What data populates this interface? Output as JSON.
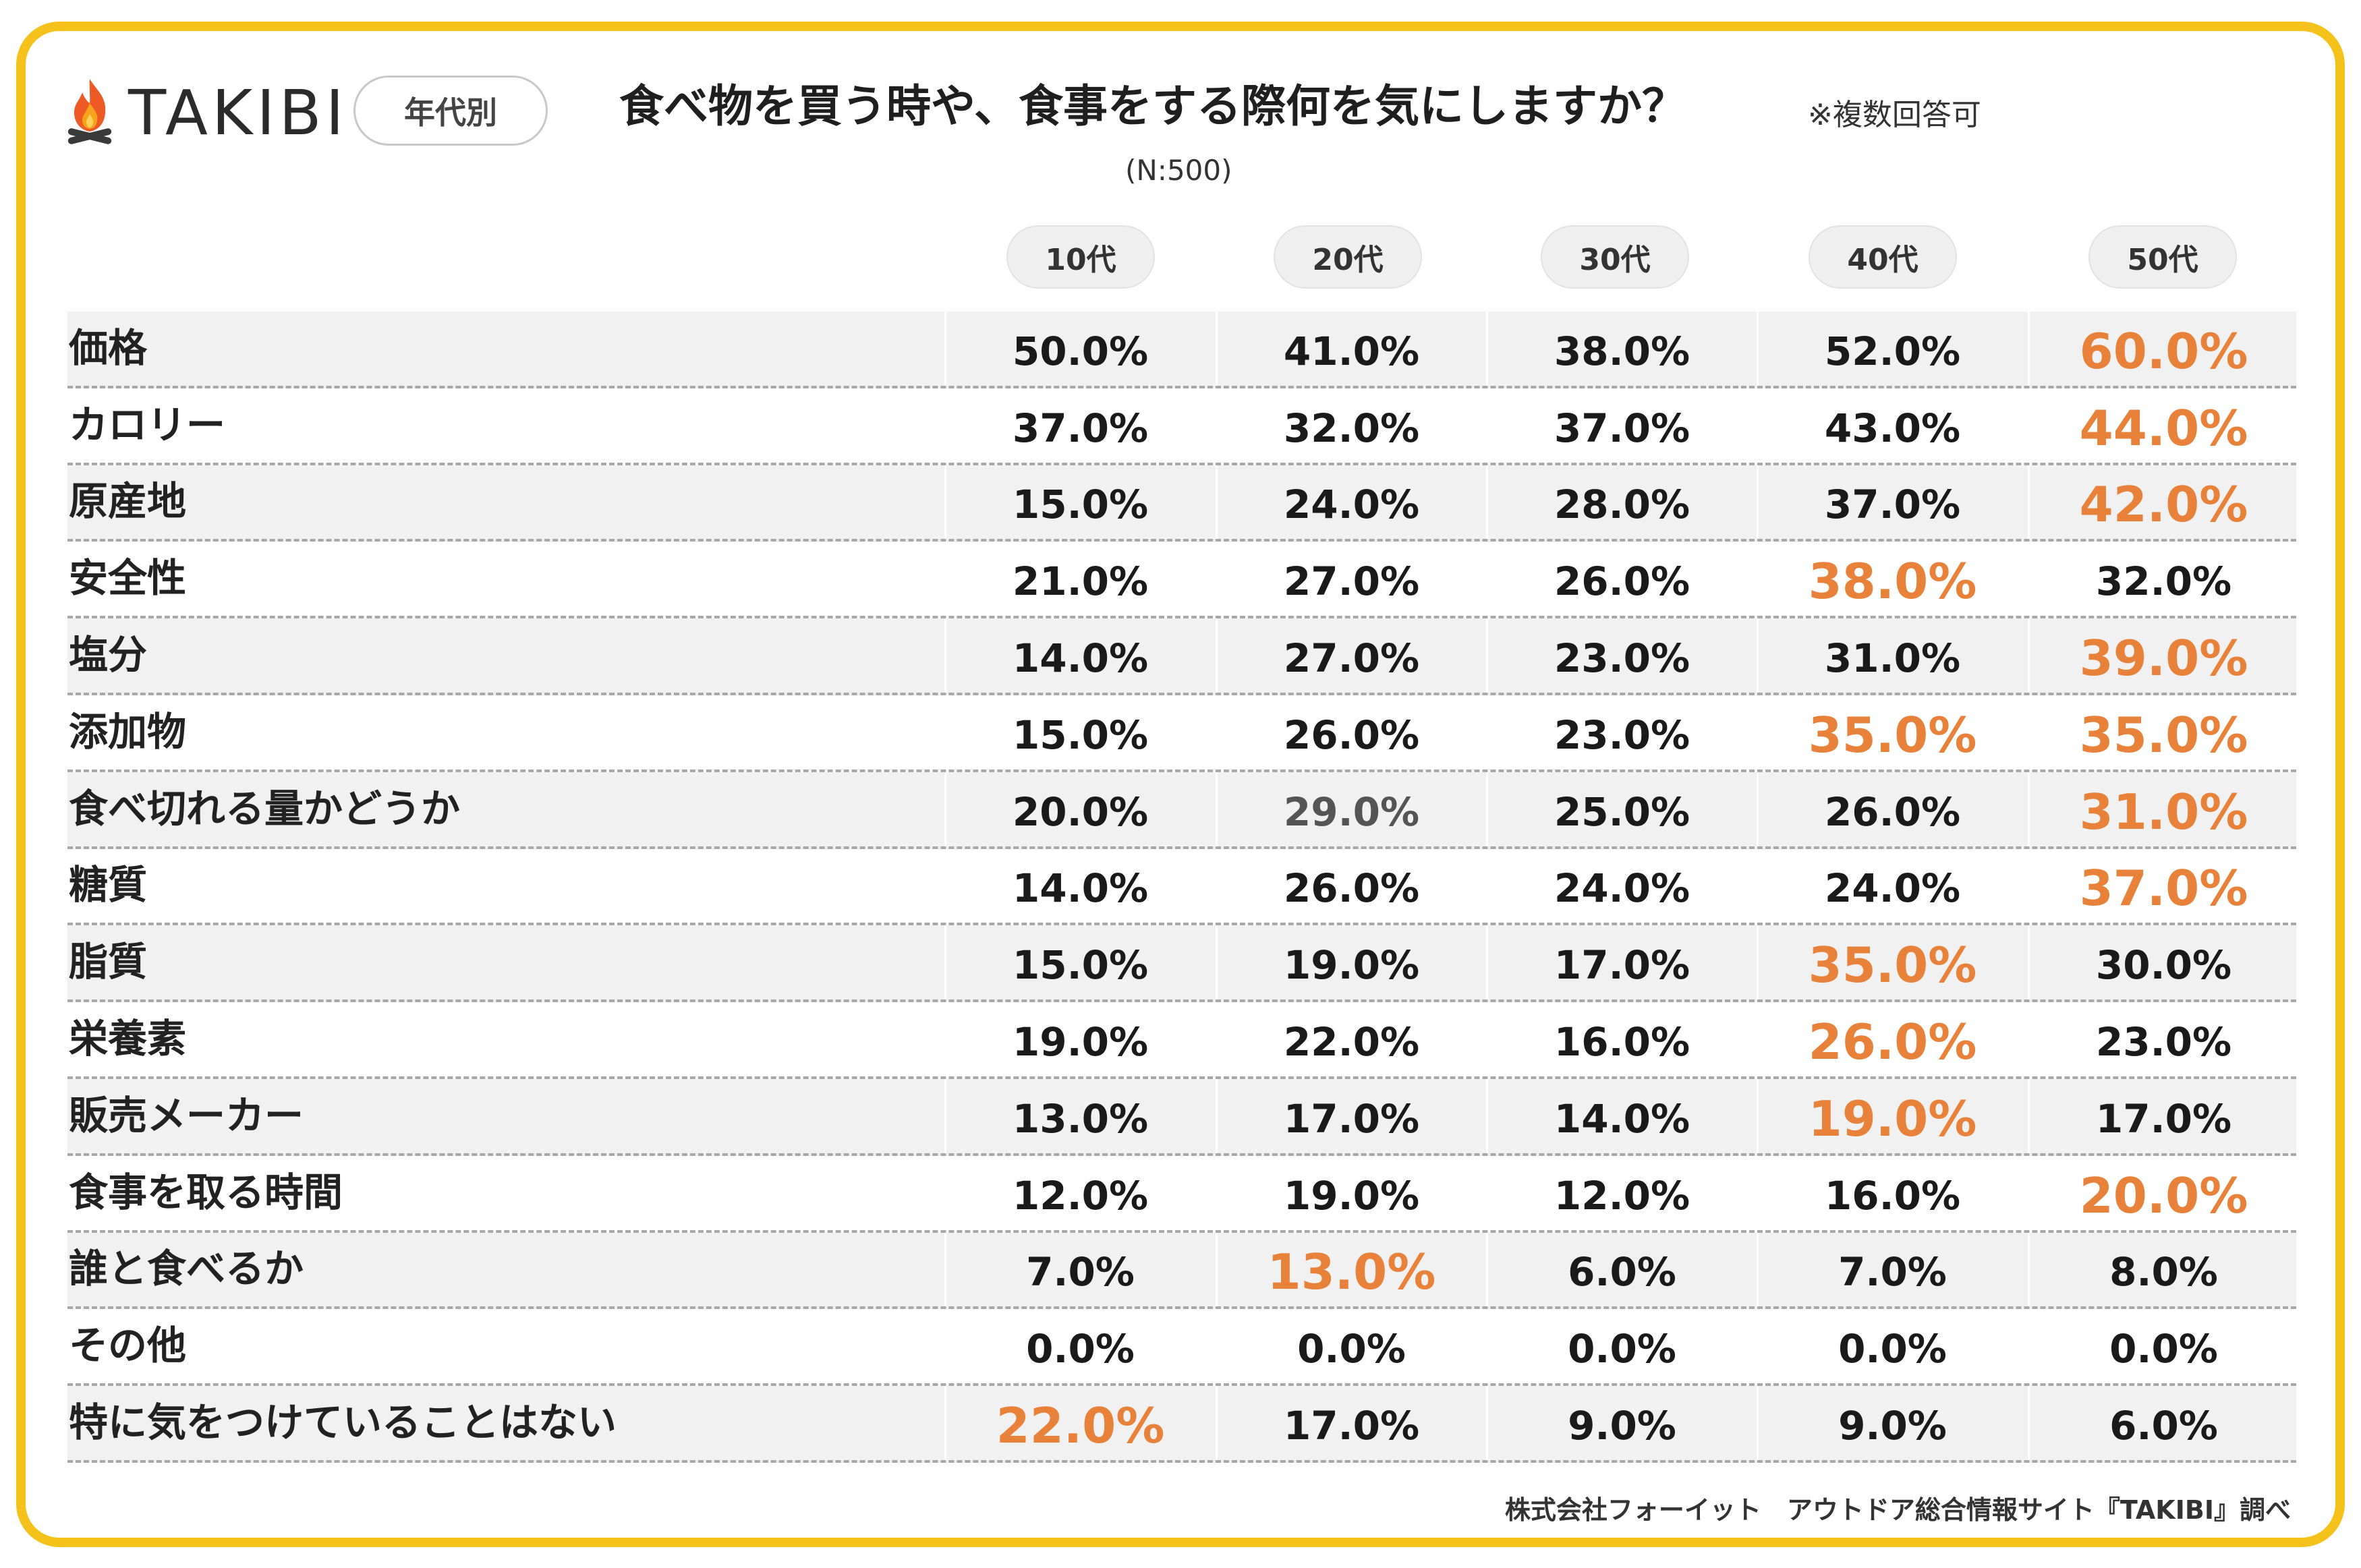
{
  "header": {
    "logo_text": "TAKIBI",
    "logo_icon": "campfire-icon",
    "category_label": "年代別",
    "title": "食べ物を買う時や、食事をする際何を気にしますか？",
    "note": "※複数回答可",
    "sample_size": "(N:500)"
  },
  "colors": {
    "border": "#f5c21b",
    "highlight": "#e8823a",
    "row_shade": "#f1f1f1"
  },
  "chart_data": {
    "type": "table",
    "columns": [
      "10代",
      "20代",
      "30代",
      "40代",
      "50代"
    ],
    "rows": [
      {
        "label": "価格",
        "values": [
          "50.0%",
          "41.0%",
          "38.0%",
          "52.0%",
          "60.0%"
        ],
        "highlight": [
          4
        ]
      },
      {
        "label": "カロリー",
        "values": [
          "37.0%",
          "32.0%",
          "37.0%",
          "43.0%",
          "44.0%"
        ],
        "highlight": [
          4
        ]
      },
      {
        "label": "原産地",
        "values": [
          "15.0%",
          "24.0%",
          "28.0%",
          "37.0%",
          "42.0%"
        ],
        "highlight": [
          4
        ]
      },
      {
        "label": "安全性",
        "values": [
          "21.0%",
          "27.0%",
          "26.0%",
          "38.0%",
          "32.0%"
        ],
        "highlight": [
          3
        ]
      },
      {
        "label": "塩分",
        "values": [
          "14.0%",
          "27.0%",
          "23.0%",
          "31.0%",
          "39.0%"
        ],
        "highlight": [
          4
        ]
      },
      {
        "label": "添加物",
        "values": [
          "15.0%",
          "26.0%",
          "23.0%",
          "35.0%",
          "35.0%"
        ],
        "highlight": [
          3,
          4
        ]
      },
      {
        "label": "食べ切れる量かどうか",
        "values": [
          "20.0%",
          "29.0%",
          "25.0%",
          "26.0%",
          "31.0%"
        ],
        "highlight": [
          4
        ]
      },
      {
        "label": "糖質",
        "values": [
          "14.0%",
          "26.0%",
          "24.0%",
          "24.0%",
          "37.0%"
        ],
        "highlight": [
          4
        ]
      },
      {
        "label": "脂質",
        "values": [
          "15.0%",
          "19.0%",
          "17.0%",
          "35.0%",
          "30.0%"
        ],
        "highlight": [
          3
        ]
      },
      {
        "label": "栄養素",
        "values": [
          "19.0%",
          "22.0%",
          "16.0%",
          "26.0%",
          "23.0%"
        ],
        "highlight": [
          3
        ]
      },
      {
        "label": "販売メーカー",
        "values": [
          "13.0%",
          "17.0%",
          "14.0%",
          "19.0%",
          "17.0%"
        ],
        "highlight": [
          3
        ]
      },
      {
        "label": "食事を取る時間",
        "values": [
          "12.0%",
          "19.0%",
          "12.0%",
          "16.0%",
          "20.0%"
        ],
        "highlight": [
          4
        ]
      },
      {
        "label": "誰と食べるか",
        "values": [
          "7.0%",
          "13.0%",
          "6.0%",
          "7.0%",
          "8.0%"
        ],
        "highlight": [
          1
        ]
      },
      {
        "label": "その他",
        "values": [
          "0.0%",
          "0.0%",
          "0.0%",
          "0.0%",
          "0.0%"
        ],
        "highlight": []
      },
      {
        "label": "特に気をつけていることはない",
        "values": [
          "22.0%",
          "17.0%",
          "9.0%",
          "9.0%",
          "6.0%"
        ],
        "highlight": [
          0
        ]
      }
    ]
  },
  "footer": {
    "credit": "株式会社フォーイット　アウトドア総合情報サイト『TAKIBI』調べ"
  }
}
